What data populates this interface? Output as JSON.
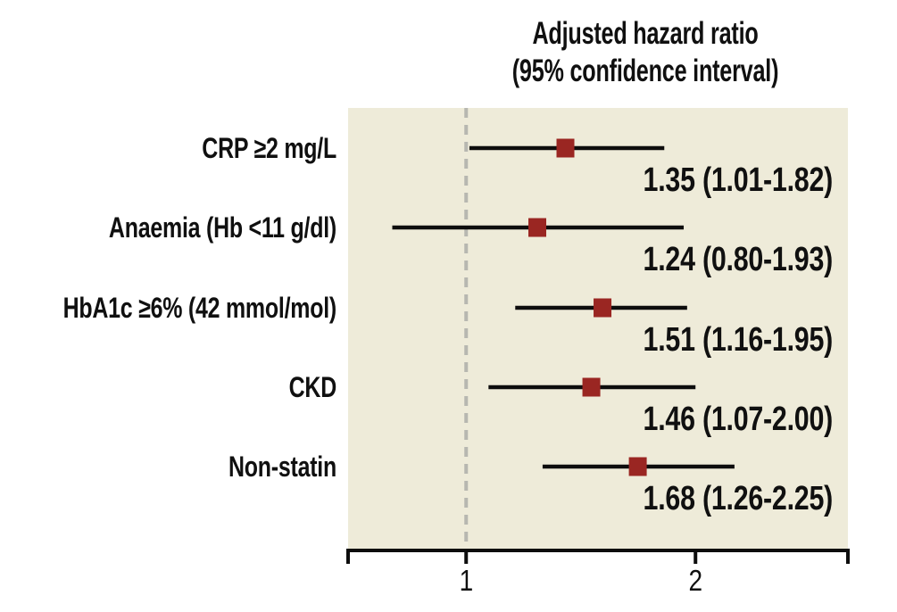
{
  "figure": {
    "title_line1": "Adjusted hazard ratio",
    "title_line2": "(95% confidence interval)"
  },
  "chart_data": {
    "type": "scatter",
    "variant": "forest-plot",
    "title": "Adjusted hazard ratio (95% confidence interval)",
    "x_axis": {
      "scale": "log",
      "min": 0.7,
      "max": 3.17,
      "ticks": [
        {
          "value": 1,
          "label": "1"
        },
        {
          "value": 2,
          "label": "2"
        }
      ],
      "grid": false
    },
    "reference_line": {
      "value": 1,
      "style": "dashed"
    },
    "rows": [
      {
        "label": "CRP ≥2 mg/L",
        "hr": 1.35,
        "ci_low": 1.01,
        "ci_high": 1.82,
        "value_text": "1.35 (1.01-1.82)"
      },
      {
        "label": "Anaemia (Hb <11 g/dl)",
        "hr": 1.24,
        "ci_low": 0.8,
        "ci_high": 1.93,
        "value_text": "1.24 (0.80-1.93)"
      },
      {
        "label": "HbA1c ≥6% (42 mmol/mol)",
        "hr": 1.51,
        "ci_low": 1.16,
        "ci_high": 1.95,
        "value_text": "1.51 (1.16-1.95)"
      },
      {
        "label": "CKD",
        "hr": 1.46,
        "ci_low": 1.07,
        "ci_high": 2.0,
        "value_text": "1.46 (1.07-2.00)"
      },
      {
        "label": "Non-statin",
        "hr": 1.68,
        "ci_low": 1.26,
        "ci_high": 2.25,
        "value_text": "1.68 (1.26-2.25)"
      }
    ],
    "colors": {
      "marker": "#9a2622",
      "ci_line": "#0d0d0d",
      "axis": "#0d0d0d",
      "text": "#101010",
      "plot_background": "#eeebd9",
      "reference_line": "#b7b7b0",
      "page_background": "#ffffff"
    }
  }
}
